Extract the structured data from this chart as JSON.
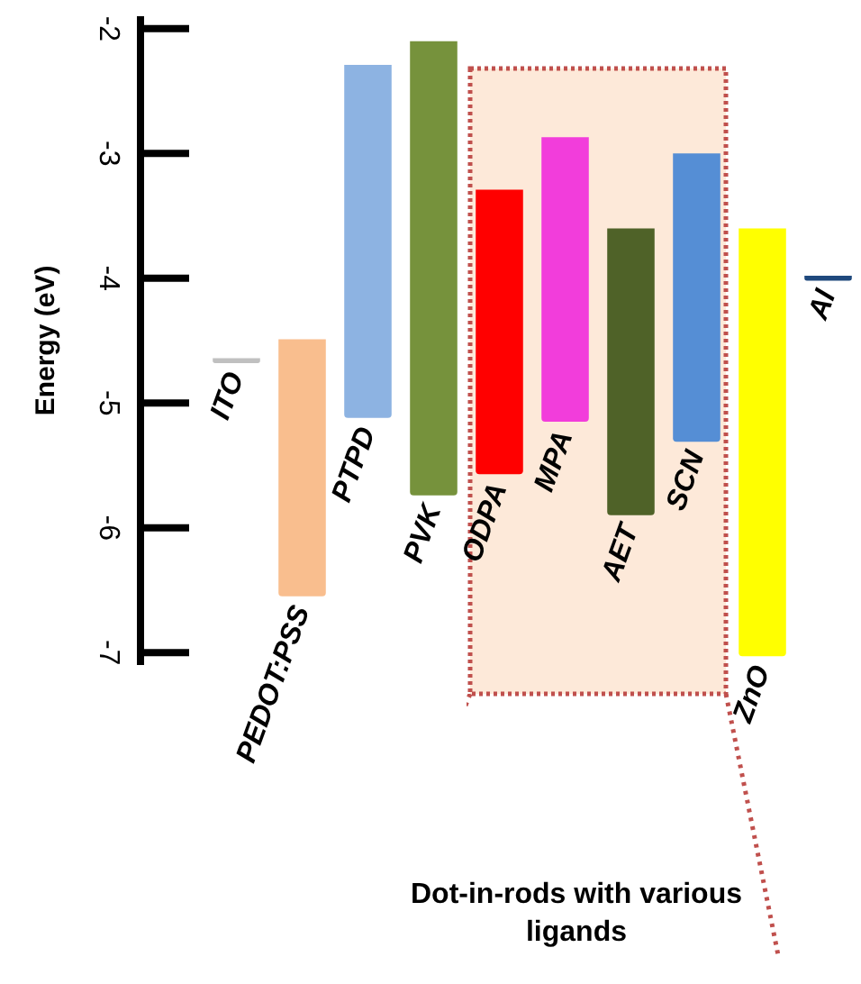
{
  "chart_data": {
    "type": "bar",
    "ylabel": "Energy (eV)",
    "categories": [
      "ITO",
      "PEDOT:PSS",
      "PTPD",
      "PVK",
      "ODPA",
      "MPA",
      "AET",
      "SCN",
      "ZnO",
      "Al"
    ],
    "base": [
      -4.68,
      -6.55,
      -5.12,
      -5.74,
      -5.57,
      -5.15,
      -5.9,
      -5.31,
      -7.03,
      -4.02
    ],
    "values": [
      0.04,
      2.06,
      2.83,
      3.64,
      2.28,
      2.28,
      2.3,
      2.31,
      3.43,
      0.04
    ],
    "colors": [
      "#c0c0c0",
      "#f9be8e",
      "#8db3e2",
      "#76923c",
      "#ff0000",
      "#f23ddb",
      "#4f6228",
      "#558ed5",
      "#ffff00",
      "#1f497d"
    ],
    "ylim": [
      -7.1,
      -1.9
    ],
    "yticks": [
      -7,
      -6,
      -5,
      -4,
      -3,
      -2
    ],
    "bands": [
      {
        "axis": "x",
        "from": "ODPA",
        "to": "SCN",
        "label": "Dot-in-rods with various ligands",
        "color": "#fde9d9"
      }
    ]
  }
}
